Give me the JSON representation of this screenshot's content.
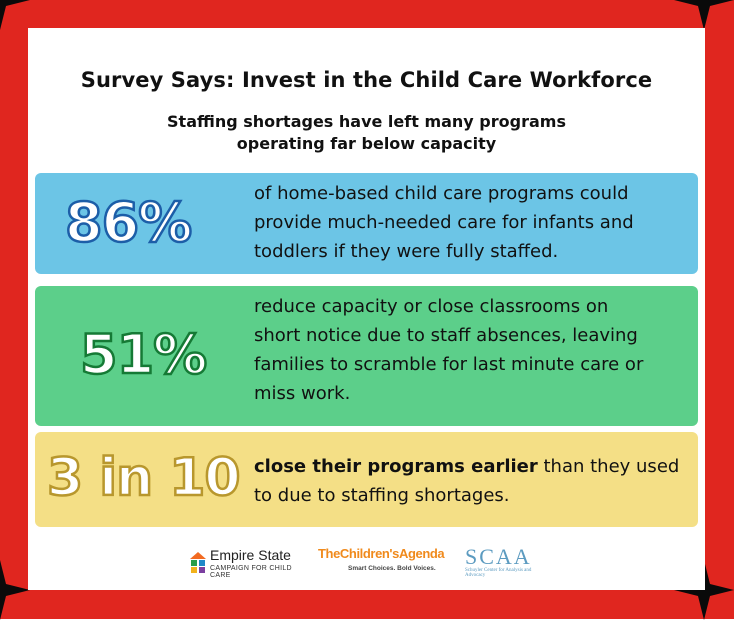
{
  "title": "Survey Says: Invest in the Child Care Workforce",
  "subtitle_line1": "Staffing shortages have left many programs",
  "subtitle_line2": "operating far below capacity",
  "stats": [
    {
      "value": "86%",
      "color": "#6cc5e6",
      "lines": [
        "of home-based child care programs could",
        "provide much-needed care for infants and",
        "toddlers if they were fully staffed."
      ]
    },
    {
      "value": "51%",
      "color": "#5ccf8a",
      "lines": [
        "reduce capacity or close classrooms on",
        "short notice due to staff absences, leaving",
        "families to scramble for last minute care or",
        "miss work."
      ]
    },
    {
      "value": "3 in 10",
      "color": "#f4df86",
      "bold_lead": "close their programs earlier",
      "line1_rest": " than they used",
      "line2": "to due to staffing shortages."
    }
  ],
  "logos": {
    "empire_state": {
      "name": "Empire State",
      "sub": "CAMPAIGN FOR CHILD CARE",
      "icon": "house-icon"
    },
    "childrens_agenda": {
      "name": "TheChildren'sAgenda",
      "tagline": "Smart Choices. Bold Voices."
    },
    "scaa": {
      "mark": "SCAA",
      "line": "Schuyler Center for Analysis and Advocacy"
    }
  },
  "colors": {
    "frame": "#e0261f",
    "corner_star": "#0a0a0a",
    "card": "#ffffff"
  }
}
